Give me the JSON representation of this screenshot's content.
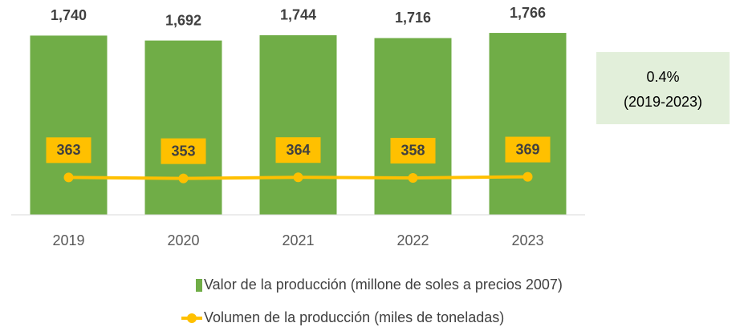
{
  "chart_data": {
    "type": "bar",
    "categories": [
      "2019",
      "2020",
      "2021",
      "2022",
      "2023"
    ],
    "series": [
      {
        "name": "Valor de la producción (millone de soles a precios 2007)",
        "type": "bar",
        "color": "#70ad47",
        "values": [
          1740,
          1692,
          1744,
          1716,
          1766
        ],
        "value_labels": [
          "1,740",
          "1,692",
          "1,744",
          "1,716",
          "1,766"
        ]
      },
      {
        "name": "Volumen de la producción (miles de toneladas)",
        "type": "line",
        "axis": "y2",
        "color": "#ffc000",
        "values": [
          363,
          353,
          364,
          358,
          369
        ]
      }
    ],
    "ylim": [
      0,
      2000
    ],
    "y2lim": [
      0,
      2000
    ],
    "annotation": [
      "0.4%",
      "(2019-2023)"
    ]
  }
}
